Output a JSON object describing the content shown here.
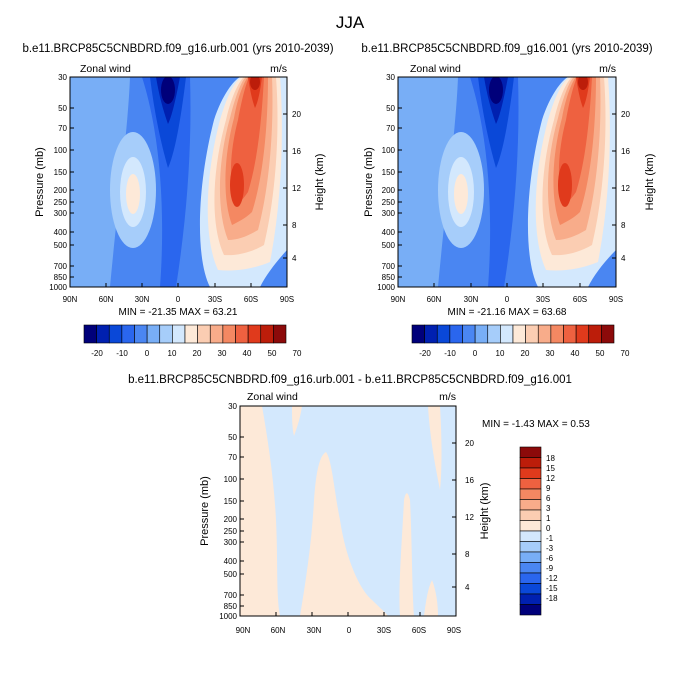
{
  "figure": {
    "title": "JJA"
  },
  "chart_data": [
    {
      "type": "heatmap",
      "title": "b.e11.BRCP85C5CNBDRD.f09_g16.urb.001 (yrs 2010-2039)",
      "left_label": "Zonal wind",
      "right_label": "m/s",
      "xlabel": "",
      "ylabel": "Pressure (mb)",
      "y2label": "Height (km)",
      "x_ticks": [
        "90N",
        "60N",
        "30N",
        "0",
        "30S",
        "60S",
        "90S"
      ],
      "y_ticks": [
        "30",
        "50",
        "70",
        "100",
        "150",
        "200",
        "250",
        "300",
        "400",
        "500",
        "700",
        "850",
        "1000"
      ],
      "y_tick_values": [
        30,
        50,
        70,
        100,
        150,
        200,
        250,
        300,
        400,
        500,
        700,
        850,
        1000
      ],
      "y2_ticks": [
        "4",
        "8",
        "12",
        "16",
        "20"
      ],
      "y2_tick_values": [
        4,
        8,
        12,
        16,
        20
      ],
      "min_max_text": "MIN = -21.35  MAX =  63.21",
      "min": -21.35,
      "max": 63.21,
      "colorbar_labels": [
        "-20",
        "-10",
        "0",
        "10",
        "20",
        "30",
        "40",
        "50",
        "70"
      ],
      "colorbar_colors": [
        "#00007a",
        "#0020b0",
        "#0a48d8",
        "#2a66ee",
        "#4a86f2",
        "#78aef6",
        "#a6cdfa",
        "#d3e8fd",
        "#fde9d8",
        "#fbcdb2",
        "#f8ac8a",
        "#f48862",
        "#ee6140",
        "#e03a1c",
        "#bc1d0a",
        "#8c0a0a"
      ]
    },
    {
      "type": "heatmap",
      "title": "b.e11.BRCP85C5CNBDRD.f09_g16.001 (yrs 2010-2039)",
      "left_label": "Zonal wind",
      "right_label": "m/s",
      "xlabel": "",
      "ylabel": "Pressure (mb)",
      "y2label": "Height (km)",
      "x_ticks": [
        "90N",
        "60N",
        "30N",
        "0",
        "30S",
        "60S",
        "90S"
      ],
      "y_ticks": [
        "30",
        "50",
        "70",
        "100",
        "150",
        "200",
        "250",
        "300",
        "400",
        "500",
        "700",
        "850",
        "1000"
      ],
      "y_tick_values": [
        30,
        50,
        70,
        100,
        150,
        200,
        250,
        300,
        400,
        500,
        700,
        850,
        1000
      ],
      "y2_ticks": [
        "4",
        "8",
        "12",
        "16",
        "20"
      ],
      "y2_tick_values": [
        4,
        8,
        12,
        16,
        20
      ],
      "min_max_text": "MIN = -21.16  MAX =  63.68",
      "min": -21.16,
      "max": 63.68,
      "colorbar_labels": [
        "-20",
        "-10",
        "0",
        "10",
        "20",
        "30",
        "40",
        "50",
        "70"
      ],
      "colorbar_colors": [
        "#00007a",
        "#0020b0",
        "#0a48d8",
        "#2a66ee",
        "#4a86f2",
        "#78aef6",
        "#a6cdfa",
        "#d3e8fd",
        "#fde9d8",
        "#fbcdb2",
        "#f8ac8a",
        "#f48862",
        "#ee6140",
        "#e03a1c",
        "#bc1d0a",
        "#8c0a0a"
      ]
    },
    {
      "type": "heatmap",
      "title": "b.e11.BRCP85C5CNBDRD.f09_g16.urb.001 - b.e11.BRCP85C5CNBDRD.f09_g16.001",
      "left_label": "Zonal wind",
      "right_label": "m/s",
      "xlabel": "",
      "ylabel": "Pressure (mb)",
      "y2label": "Height (km)",
      "x_ticks": [
        "90N",
        "60N",
        "30N",
        "0",
        "30S",
        "60S",
        "90S"
      ],
      "y_ticks": [
        "30",
        "50",
        "70",
        "100",
        "150",
        "200",
        "250",
        "300",
        "400",
        "500",
        "700",
        "850",
        "1000"
      ],
      "y_tick_values": [
        30,
        50,
        70,
        100,
        150,
        200,
        250,
        300,
        400,
        500,
        700,
        850,
        1000
      ],
      "y2_ticks": [
        "4",
        "8",
        "12",
        "16",
        "20"
      ],
      "y2_tick_values": [
        4,
        8,
        12,
        16,
        20
      ],
      "min_max_text": "MIN =  -1.43  MAX =   0.53",
      "min": -1.43,
      "max": 0.53,
      "colorbar_labels": [
        "18",
        "15",
        "12",
        "9",
        "6",
        "3",
        "1",
        "0",
        "-1",
        "-3",
        "-6",
        "-9",
        "-12",
        "-15",
        "-18"
      ],
      "colorbar_colors": [
        "#8c0a0a",
        "#bc1d0a",
        "#e03a1c",
        "#ee6140",
        "#f48862",
        "#f8ac8a",
        "#fbcdb2",
        "#fde9d8",
        "#d3e8fd",
        "#a6cdfa",
        "#78aef6",
        "#4a86f2",
        "#2a66ee",
        "#0a48d8",
        "#0020b0",
        "#00007a"
      ]
    }
  ]
}
